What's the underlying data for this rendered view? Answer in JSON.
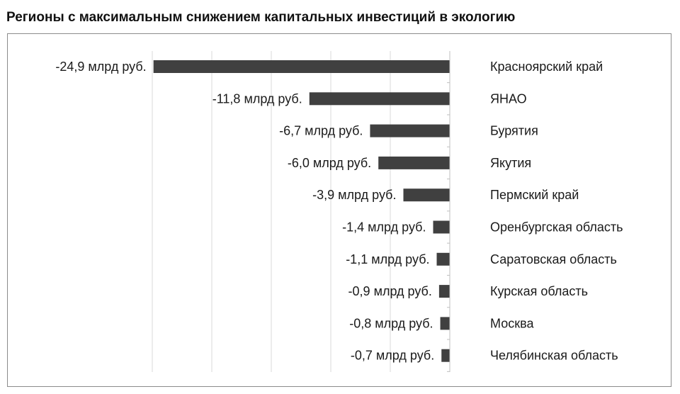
{
  "page": {
    "title": "Регионы с максимальным снижением капитальных инвестиций в экологию"
  },
  "chart_data": {
    "type": "bar",
    "orientation": "horizontal",
    "title": "Регионы с максимальным снижением капитальных инвестиций в экологию",
    "xlabel": "",
    "ylabel": "",
    "grid": true,
    "xlim": [
      -30,
      0
    ],
    "colors": {
      "bar": "#404040",
      "grid": "#d9d9d9",
      "axis": "#bfbfbf",
      "text": "#1a1a1a"
    },
    "categories": [
      "Красноярский край",
      "ЯНАО",
      "Бурятия",
      "Якутия",
      "Пермский край",
      "Оренбургская область",
      "Саратовская область",
      "Курская область",
      "Москва",
      "Челябинская область"
    ],
    "values": [
      -24.9,
      -11.8,
      -6.7,
      -6.0,
      -3.9,
      -1.4,
      -1.1,
      -0.9,
      -0.8,
      -0.7
    ],
    "data_labels": [
      "-24,9 млрд руб.",
      "-11,8 млрд руб.",
      "-6,7 млрд руб.",
      "-6,0 млрд руб.",
      "-3,9 млрд руб.",
      "-1,4 млрд руб.",
      "-1,1 млрд руб.",
      "-0,9 млрд руб.",
      "-0,8 млрд руб.",
      "-0,7 млрд руб."
    ]
  }
}
